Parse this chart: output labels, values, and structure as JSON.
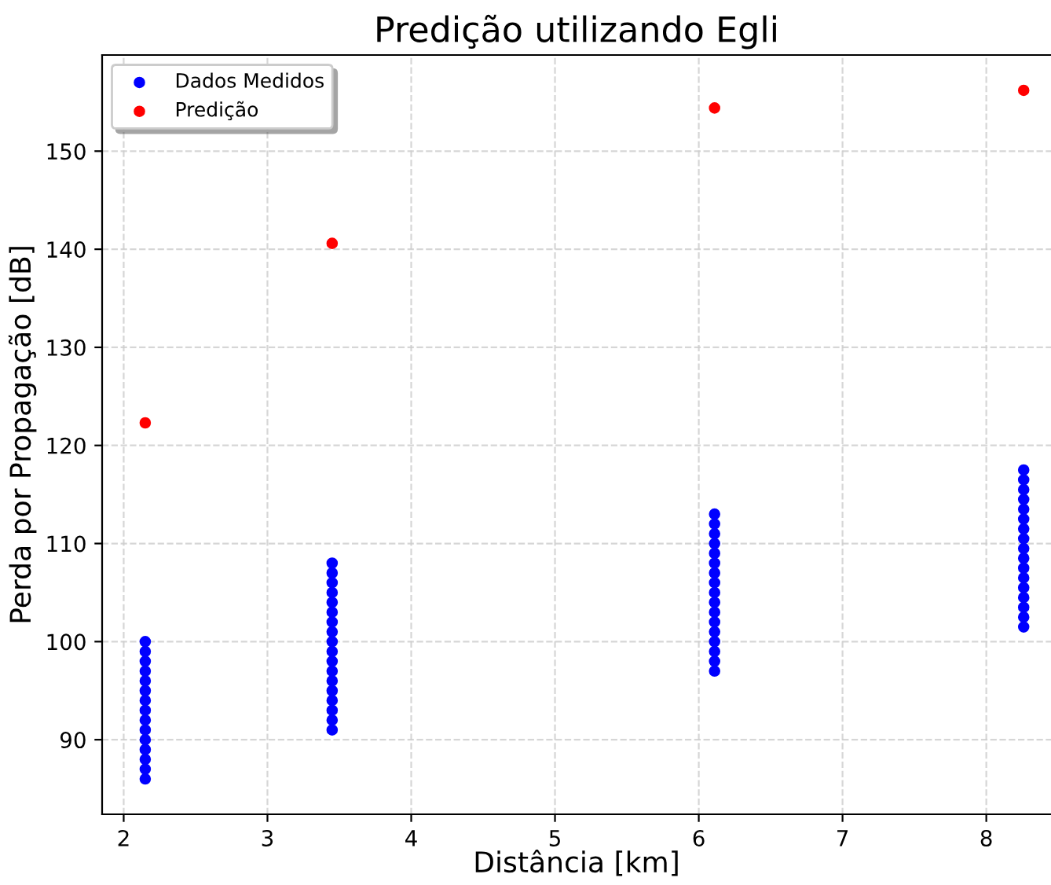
{
  "chart_data": {
    "type": "scatter",
    "title": "Predição utilizando Egli",
    "xlabel": "Distância [km]",
    "ylabel": "Perda por Propagação [dB]",
    "series": [
      {
        "name": "Dados Medidos",
        "color": "#0000ff",
        "x": [
          2.15,
          2.15,
          2.15,
          2.15,
          2.15,
          2.15,
          2.15,
          2.15,
          2.15,
          2.15,
          2.15,
          2.15,
          2.15,
          2.15,
          2.15,
          3.45,
          3.45,
          3.45,
          3.45,
          3.45,
          3.45,
          3.45,
          3.45,
          3.45,
          3.45,
          3.45,
          3.45,
          3.45,
          3.45,
          3.45,
          3.45,
          3.45,
          3.45,
          6.11,
          6.11,
          6.11,
          6.11,
          6.11,
          6.11,
          6.11,
          6.11,
          6.11,
          6.11,
          6.11,
          6.11,
          6.11,
          6.11,
          6.11,
          6.11,
          6.11,
          8.26,
          8.26,
          8.26,
          8.26,
          8.26,
          8.26,
          8.26,
          8.26,
          8.26,
          8.26,
          8.26,
          8.26,
          8.26,
          8.26,
          8.26,
          8.26,
          8.26
        ],
        "values": [
          86,
          87,
          88,
          89,
          90,
          91,
          92,
          93,
          94,
          95,
          96,
          97,
          98,
          99,
          100,
          91,
          92,
          93,
          94,
          95,
          96,
          97,
          98,
          99,
          100,
          101,
          102,
          103,
          104,
          105,
          106,
          107,
          108,
          97,
          98,
          99,
          100,
          101,
          102,
          103,
          104,
          105,
          106,
          107,
          108,
          109,
          110,
          111,
          112,
          113,
          101.5,
          102.5,
          103.5,
          104.5,
          105.5,
          106.5,
          107.5,
          108.5,
          109.5,
          110.5,
          111.5,
          112.5,
          113.5,
          114.5,
          115.5,
          116.5,
          117.5
        ]
      },
      {
        "name": "Predição",
        "color": "#ff0000",
        "x": [
          2.15,
          3.45,
          6.11,
          8.26
        ],
        "values": [
          122.3,
          140.6,
          154.4,
          156.2
        ]
      }
    ],
    "xlim": [
      1.85,
      8.45
    ],
    "xticks": [
      2,
      3,
      4,
      5,
      6,
      7,
      8
    ],
    "ylim": [
      82.4,
      159.8
    ],
    "yticks": [
      90,
      100,
      110,
      120,
      130,
      140,
      150
    ],
    "grid": true,
    "legend": "top left",
    "marker": "circle"
  }
}
